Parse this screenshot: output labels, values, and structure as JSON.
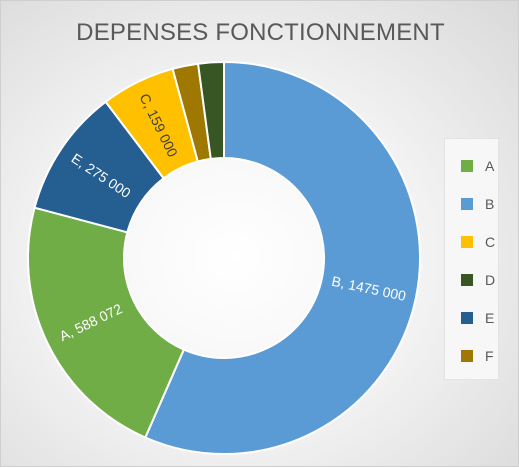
{
  "chart_data": {
    "type": "pie",
    "subtype": "donut",
    "title": "DEPENSES FONCTIONNEMENT",
    "categories": [
      "B",
      "A",
      "E",
      "C",
      "F",
      "D"
    ],
    "values": [
      1475000,
      588072,
      275000,
      159000,
      55000,
      55000
    ],
    "data_labels": [
      "B, 1475 000",
      "A, 588 072",
      "E, 275 000",
      "C, 159 000",
      "",
      ""
    ],
    "colors": [
      "#5b9bd5",
      "#70ad47",
      "#255e91",
      "#ffc000",
      "#9e7800",
      "#375623"
    ],
    "legend_position": "right",
    "legend": [
      {
        "label": "A",
        "color": "#70ad47"
      },
      {
        "label": "B",
        "color": "#5b9bd5"
      },
      {
        "label": "C",
        "color": "#ffc000"
      },
      {
        "label": "D",
        "color": "#375623"
      },
      {
        "label": "E",
        "color": "#255e91"
      },
      {
        "label": "F",
        "color": "#9e7800"
      }
    ]
  }
}
